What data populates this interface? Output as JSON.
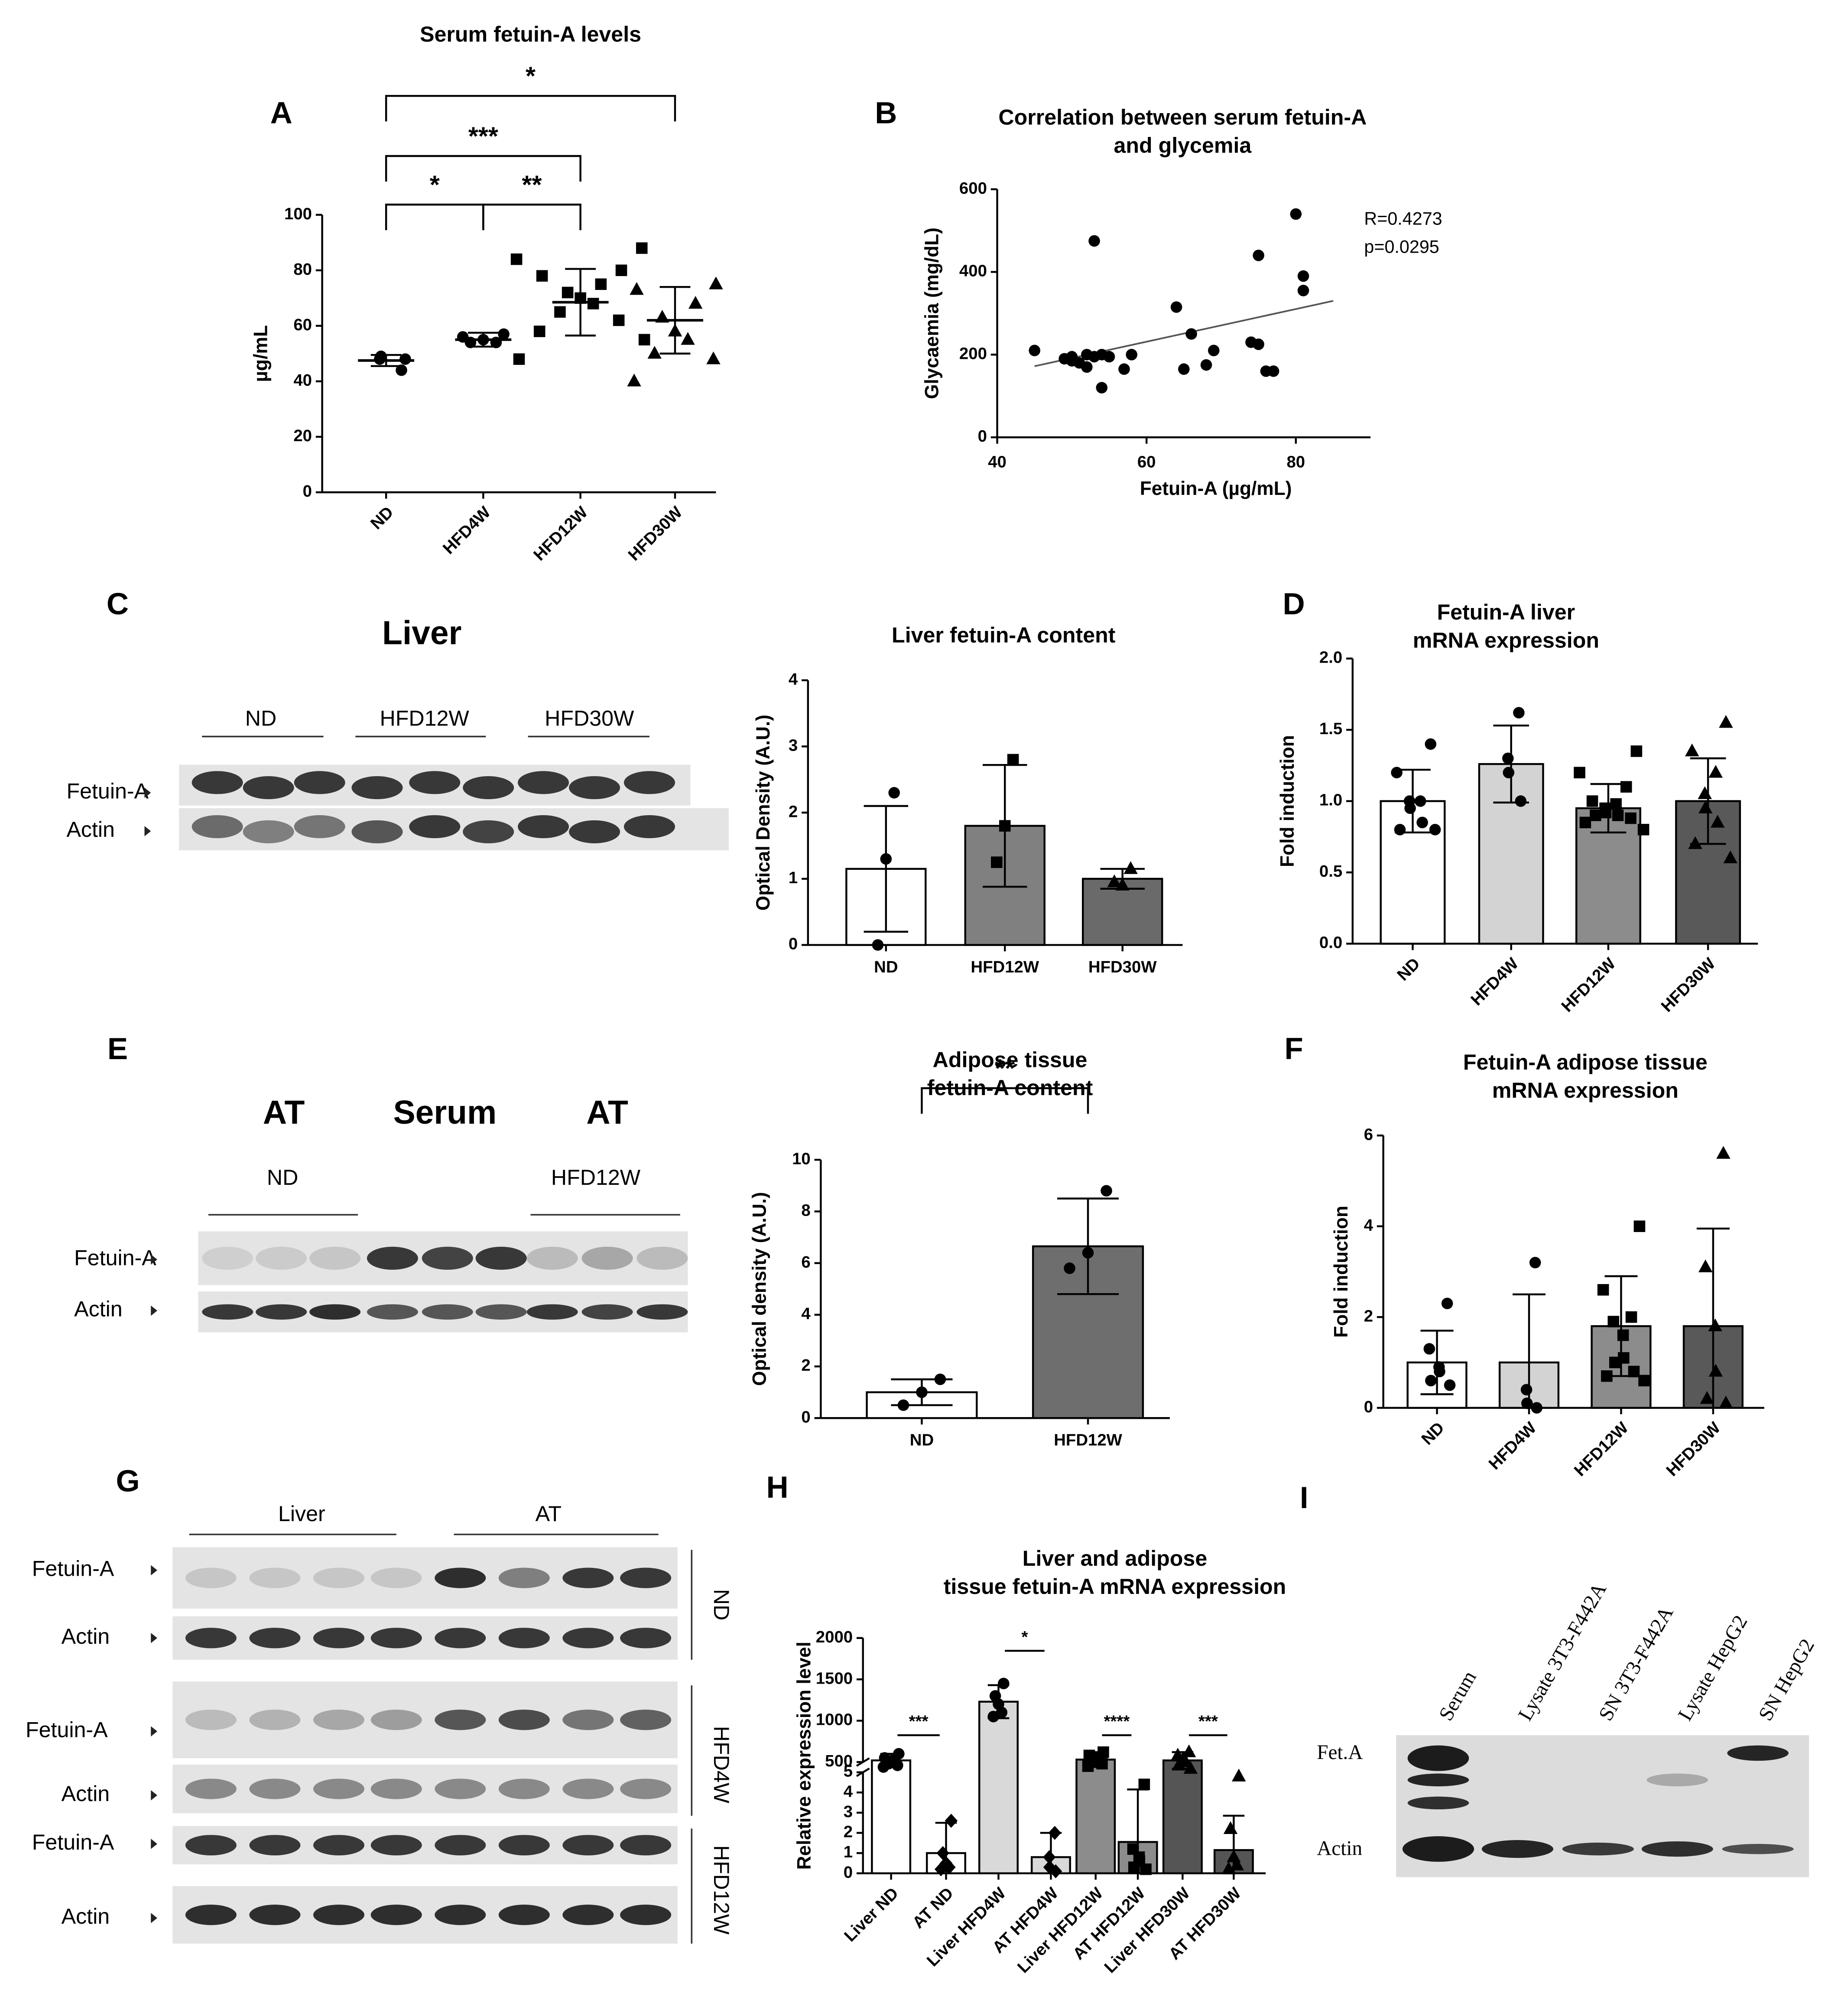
{
  "panels": [
    "A",
    "B",
    "C",
    "D",
    "E",
    "F",
    "G",
    "H",
    "I"
  ],
  "blots": {
    "C": {
      "tissue": "Liver",
      "groups": [
        "ND",
        "HFD12W",
        "HFD30W"
      ],
      "rows": [
        "Fetuin-A",
        "Actin"
      ]
    },
    "E": {
      "tissues": [
        "AT",
        "Serum",
        "AT"
      ],
      "groups": [
        "ND",
        "HFD12W"
      ],
      "rows": [
        "Fetuin-A",
        "Actin"
      ]
    },
    "G": {
      "tissues": [
        "Liver",
        "AT"
      ],
      "rows": [
        "Fetuin-A",
        "Actin",
        "Fetuin-A",
        "Actin",
        "Fetuin-A",
        "Actin"
      ],
      "groups": [
        "ND",
        "HFD4W",
        "HFD12W"
      ]
    },
    "I": {
      "lanes": [
        "Serum",
        "Lysate 3T3-F442A",
        "SN 3T3-F442A",
        "Lysate HepG2",
        "SN HepG2"
      ],
      "rows": [
        "Fet.A",
        "Actin"
      ]
    }
  },
  "chart_data": [
    {
      "type": "dot",
      "title": [
        "Serum fetuin-A levels"
      ],
      "ylabel": "µg/mL",
      "categories": [
        "ND",
        "HFD4W",
        "HFD12W",
        "HFD30W"
      ],
      "values": [
        47.5,
        55,
        68.5,
        62
      ],
      "errors": [
        2,
        2.5,
        12,
        12
      ],
      "points": [
        [
          44,
          48,
          49,
          48
        ],
        [
          57,
          54,
          55,
          54,
          56
        ],
        [
          88,
          84,
          80,
          78,
          75,
          72,
          70,
          68,
          65,
          62,
          58,
          55,
          48
        ],
        [
          75,
          73,
          68,
          63,
          58,
          55,
          50,
          48,
          40
        ]
      ],
      "markers": [
        "circle",
        "circle",
        "square",
        "triangle"
      ],
      "ylim": [
        0,
        100
      ],
      "yticks": [
        0,
        20,
        40,
        60,
        80,
        100
      ],
      "brackets": [
        {
          "from": 0,
          "to": 1,
          "label": "*"
        },
        {
          "from": 1,
          "to": 2,
          "label": "**"
        },
        {
          "from": 0,
          "to": 2,
          "label": "***"
        },
        {
          "from": 0,
          "to": 3,
          "label": "*"
        }
      ]
    },
    {
      "type": "scatter",
      "title": [
        "Correlation between serum fetuin-A",
        "and glycemia"
      ],
      "xlabel": "Fetuin-A (µg/mL)",
      "ylabel": "Glycaemia (mg/dL)",
      "x": [
        45,
        49,
        50,
        50,
        51,
        52,
        52,
        53,
        53,
        54,
        54,
        55,
        57,
        58,
        64,
        65,
        66,
        68,
        69,
        74,
        75,
        75,
        76,
        77,
        80,
        81,
        81
      ],
      "y": [
        210,
        190,
        185,
        195,
        180,
        200,
        170,
        195,
        475,
        200,
        120,
        195,
        165,
        200,
        315,
        165,
        250,
        175,
        210,
        230,
        225,
        440,
        160,
        160,
        540,
        390,
        355
      ],
      "trend_line": {
        "x": [
          45,
          85
        ],
        "y": [
          172,
          330
        ]
      },
      "annotations": [
        "R=0.4273",
        "p=0.0295"
      ],
      "color": "#000000",
      "xlim": [
        40,
        90
      ],
      "xticks": [
        40,
        60,
        80
      ],
      "ylim": [
        0,
        600
      ],
      "yticks": [
        0,
        200,
        400,
        600
      ]
    },
    {
      "type": "bar",
      "title": [
        "Liver fetuin-A content"
      ],
      "ylabel": "Optical Density (A.U.)",
      "categories": [
        "ND",
        "HFD12W",
        "HFD30W"
      ],
      "values": [
        1.15,
        1.8,
        1.0
      ],
      "errors": [
        0.95,
        0.92,
        0.15
      ],
      "points": [
        [
          2.3,
          1.3,
          0.0
        ],
        [
          2.8,
          1.8,
          1.25
        ],
        [
          1.15,
          0.9,
          0.95
        ]
      ],
      "markers": [
        "circle",
        "square",
        "triangle"
      ],
      "colors": [
        "#ffffff",
        "#808080",
        "#6a6a6a"
      ],
      "ylim": [
        0,
        4
      ],
      "yticks": [
        0,
        1,
        2,
        3,
        4
      ]
    },
    {
      "type": "bar",
      "title": [
        "Fetuin-A liver",
        "mRNA expression"
      ],
      "ylabel": "Fold induction",
      "categories": [
        "ND",
        "HFD4W",
        "HFD12W",
        "HFD30W"
      ],
      "values": [
        1.0,
        1.26,
        0.95,
        1.0
      ],
      "errors": [
        0.22,
        0.27,
        0.17,
        0.3
      ],
      "points": [
        [
          1.4,
          1.2,
          1.0,
          1.0,
          0.95,
          0.85,
          0.8,
          0.8
        ],
        [
          1.62,
          1.3,
          1.2,
          1.0
        ],
        [
          1.35,
          1.2,
          1.1,
          1.0,
          0.98,
          0.95,
          0.92,
          0.9,
          0.9,
          0.88,
          0.85,
          0.8
        ],
        [
          1.55,
          1.35,
          1.2,
          1.05,
          0.95,
          0.85,
          0.7,
          0.6
        ]
      ],
      "markers": [
        "circle",
        "circle",
        "square",
        "triangle"
      ],
      "colors": [
        "#ffffff",
        "#d3d3d3",
        "#8c8c8c",
        "#595959"
      ],
      "ylim": [
        0,
        2
      ],
      "yticks": [
        {
          "value": 0,
          "label": "0.0"
        },
        0.5,
        {
          "value": 1,
          "label": "1.0"
        },
        1.5,
        {
          "value": 2,
          "label": "2.0"
        }
      ]
    },
    {
      "type": "bar",
      "title": [
        "Adipose tissue",
        "fetuin-A content"
      ],
      "ylabel": "Optical density (A.U.)",
      "categories": [
        "ND",
        "HFD12W"
      ],
      "values": [
        1.0,
        6.65
      ],
      "errors": [
        0.5,
        1.85
      ],
      "points": [
        [
          1.5,
          1.0,
          0.5
        ],
        [
          8.8,
          6.4,
          5.8
        ]
      ],
      "markers": [
        "circle",
        "circle"
      ],
      "colors": [
        "#ffffff",
        "#6e6e6e"
      ],
      "ylim": [
        0,
        10
      ],
      "yticks": [
        0,
        2,
        4,
        6,
        8,
        10
      ],
      "brackets": [
        {
          "from": 0,
          "to": 1,
          "label": "**"
        }
      ]
    },
    {
      "type": "bar",
      "title": [
        "Fetuin-A adipose tissue",
        "mRNA expression"
      ],
      "ylabel": "Fold induction",
      "categories": [
        "ND",
        "HFD4W",
        "HFD12W",
        "HFD30W"
      ],
      "values": [
        1.0,
        1.0,
        1.8,
        1.8
      ],
      "errors": [
        0.7,
        1.5,
        1.1,
        2.15
      ],
      "points": [
        [
          2.3,
          1.3,
          0.9,
          0.8,
          0.6,
          0.5
        ],
        [
          3.2,
          0.4,
          0.1,
          0.0
        ],
        [
          4.0,
          2.6,
          2.0,
          1.9,
          1.6,
          1.1,
          1.0,
          0.8,
          0.7,
          0.6
        ],
        [
          5.6,
          3.1,
          1.8,
          0.8,
          0.2,
          0.1
        ]
      ],
      "markers": [
        "circle",
        "circle",
        "square",
        "triangle"
      ],
      "colors": [
        "#ffffff",
        "#d3d3d3",
        "#8c8c8c",
        "#595959"
      ],
      "ylim": [
        0,
        6
      ],
      "yticks": [
        0,
        2,
        4,
        6
      ]
    },
    {
      "type": "bar",
      "title": [
        "Liver and adipose",
        "tissue fetuin-A mRNA expression"
      ],
      "ylabel": "Relative expression level",
      "categories": [
        "Liver ND",
        "AT ND",
        "Liver HFD4W",
        "AT HFD4W",
        "Liver HFD12W",
        "AT HFD12W",
        "Liver HFD30W",
        "AT HFD30W"
      ],
      "values": [
        520,
        1.0,
        1230,
        0.8,
        530,
        1.55,
        520,
        1.15
      ],
      "errors": [
        80,
        1.5,
        200,
        1.2,
        90,
        2.6,
        100,
        1.7
      ],
      "points": [
        [
          600,
          550,
          520,
          500,
          480,
          460,
          440
        ],
        [
          2.6,
          1.0,
          0.5,
          0.3,
          0.2
        ],
        [
          1450,
          1300,
          1200,
          1100,
          1050
        ],
        [
          2.0,
          0.8,
          0.3,
          0.1
        ],
        [
          620,
          580,
          550,
          520,
          500,
          480,
          450
        ],
        [
          4.4,
          1.2,
          0.8,
          0.6,
          0.3,
          0.2
        ],
        [
          620,
          580,
          540,
          500,
          460,
          420
        ],
        [
          4.8,
          2.2,
          0.8,
          0.4,
          0.2
        ]
      ],
      "markers": [
        "circle",
        "diamond",
        "circle",
        "diamond",
        "square",
        "square",
        "triangle",
        "triangle"
      ],
      "colors": [
        "#ffffff",
        "#ffffff",
        "#d9d9d9",
        "#d9d9d9",
        "#8c8c8c",
        "#8c8c8c",
        "#555555",
        "#555555"
      ],
      "ylim": [
        0,
        2000
      ],
      "axis_break": [
        5,
        500
      ],
      "yticks": [
        0,
        1,
        2,
        3,
        4,
        5,
        500,
        1000,
        1500,
        2000
      ],
      "brackets": [
        {
          "from": 0,
          "to": 1,
          "label": "***"
        },
        {
          "from": 2,
          "to": 3,
          "label": "*"
        },
        {
          "from": 4,
          "to": 5,
          "label": "****"
        },
        {
          "from": 6,
          "to": 7,
          "label": "***"
        }
      ]
    }
  ]
}
